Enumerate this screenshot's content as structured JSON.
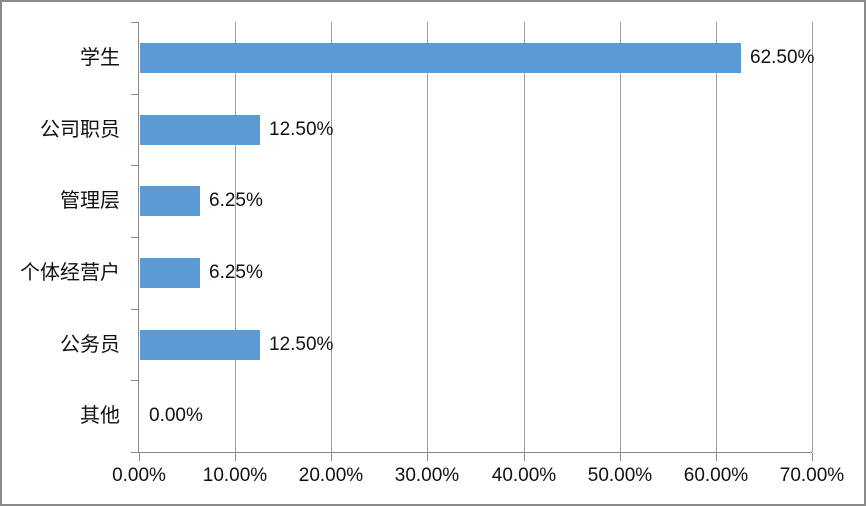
{
  "chart_data": {
    "type": "bar",
    "orientation": "horizontal",
    "title": "",
    "xlabel": "",
    "ylabel": "",
    "categories": [
      "学生",
      "公司职员",
      "管理层",
      "个体经营户",
      "公务员",
      "其他"
    ],
    "values": [
      0.625,
      0.125,
      0.0625,
      0.0625,
      0.125,
      0.0
    ],
    "value_labels": [
      "62.50%",
      "12.50%",
      "6.25%",
      "6.25%",
      "12.50%",
      "0.00%"
    ],
    "x_tick_labels": [
      "0.00%",
      "10.00%",
      "20.00%",
      "30.00%",
      "40.00%",
      "50.00%",
      "60.00%",
      "70.00%"
    ],
    "xlim": [
      0.0,
      0.7
    ],
    "grid": true,
    "legend": false,
    "colors": {
      "bar": "#5B9BD5",
      "gridline": "#9E9E9E",
      "axis": "#898989",
      "text": "#111111",
      "background": "#FFFFFF",
      "frame_border": "#8A8A8A"
    }
  }
}
